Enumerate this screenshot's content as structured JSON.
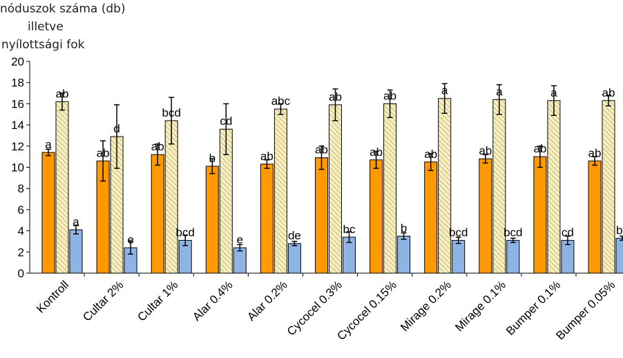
{
  "y_title_lines": [
    "nóduszok száma (db)",
    "illetve",
    "nyílottsági fok"
  ],
  "chart_data": {
    "type": "bar",
    "ylim": [
      0,
      20
    ],
    "yticks": [
      0,
      2,
      4,
      6,
      8,
      10,
      12,
      14,
      16,
      18,
      20
    ],
    "categories": [
      "Kontroll",
      "Cultar 2%",
      "Cultar 1%",
      "Alar 0.4%",
      "Alar 0.2%",
      "Cycocel 0.3%",
      "Cycocel 0.15%",
      "Mirage 0.2%",
      "Mirage 0.1%",
      "Bumper 0.1%",
      "Bumper 0.05%"
    ],
    "series": [
      {
        "color": "#ff9900",
        "pattern": "solid",
        "values": [
          11.4,
          10.6,
          11.2,
          10.1,
          10.3,
          10.9,
          10.7,
          10.5,
          10.8,
          11.0,
          10.6
        ],
        "errors": [
          0.3,
          1.9,
          1.0,
          0.7,
          0.4,
          1.1,
          0.8,
          0.8,
          0.4,
          1.0,
          0.4
        ],
        "labels": [
          "a",
          "ab",
          "ab",
          "b",
          "ab",
          "ab",
          "ab",
          "ab",
          "ab",
          "ab",
          "ab"
        ]
      },
      {
        "color": "#f5ecb0",
        "pattern": "hatched",
        "values": [
          16.2,
          12.9,
          14.4,
          13.6,
          15.5,
          15.9,
          16.0,
          16.5,
          16.4,
          16.3,
          16.3
        ],
        "errors": [
          0.8,
          3.0,
          2.2,
          2.4,
          0.5,
          1.5,
          1.3,
          1.4,
          1.4,
          1.4,
          0.5
        ],
        "labels": [
          "ab",
          "d",
          "bcd",
          "cd",
          "abc",
          "ab",
          "ab",
          "a",
          "a",
          "a",
          "ab"
        ]
      },
      {
        "color": "#8eb4e3",
        "pattern": "solid",
        "values": [
          4.1,
          2.4,
          3.1,
          2.4,
          2.8,
          3.4,
          3.5,
          3.1,
          3.1,
          3.1,
          3.3
        ],
        "errors": [
          0.4,
          0.6,
          0.5,
          0.3,
          0.2,
          0.5,
          0.3,
          0.3,
          0.2,
          0.4,
          0.2
        ],
        "labels": [
          "a",
          "e",
          "bcd",
          "e",
          "de",
          "bc",
          "b",
          "bcd",
          "bcd",
          "cd",
          "bc"
        ]
      }
    ],
    "grid": false,
    "legend": "none"
  }
}
